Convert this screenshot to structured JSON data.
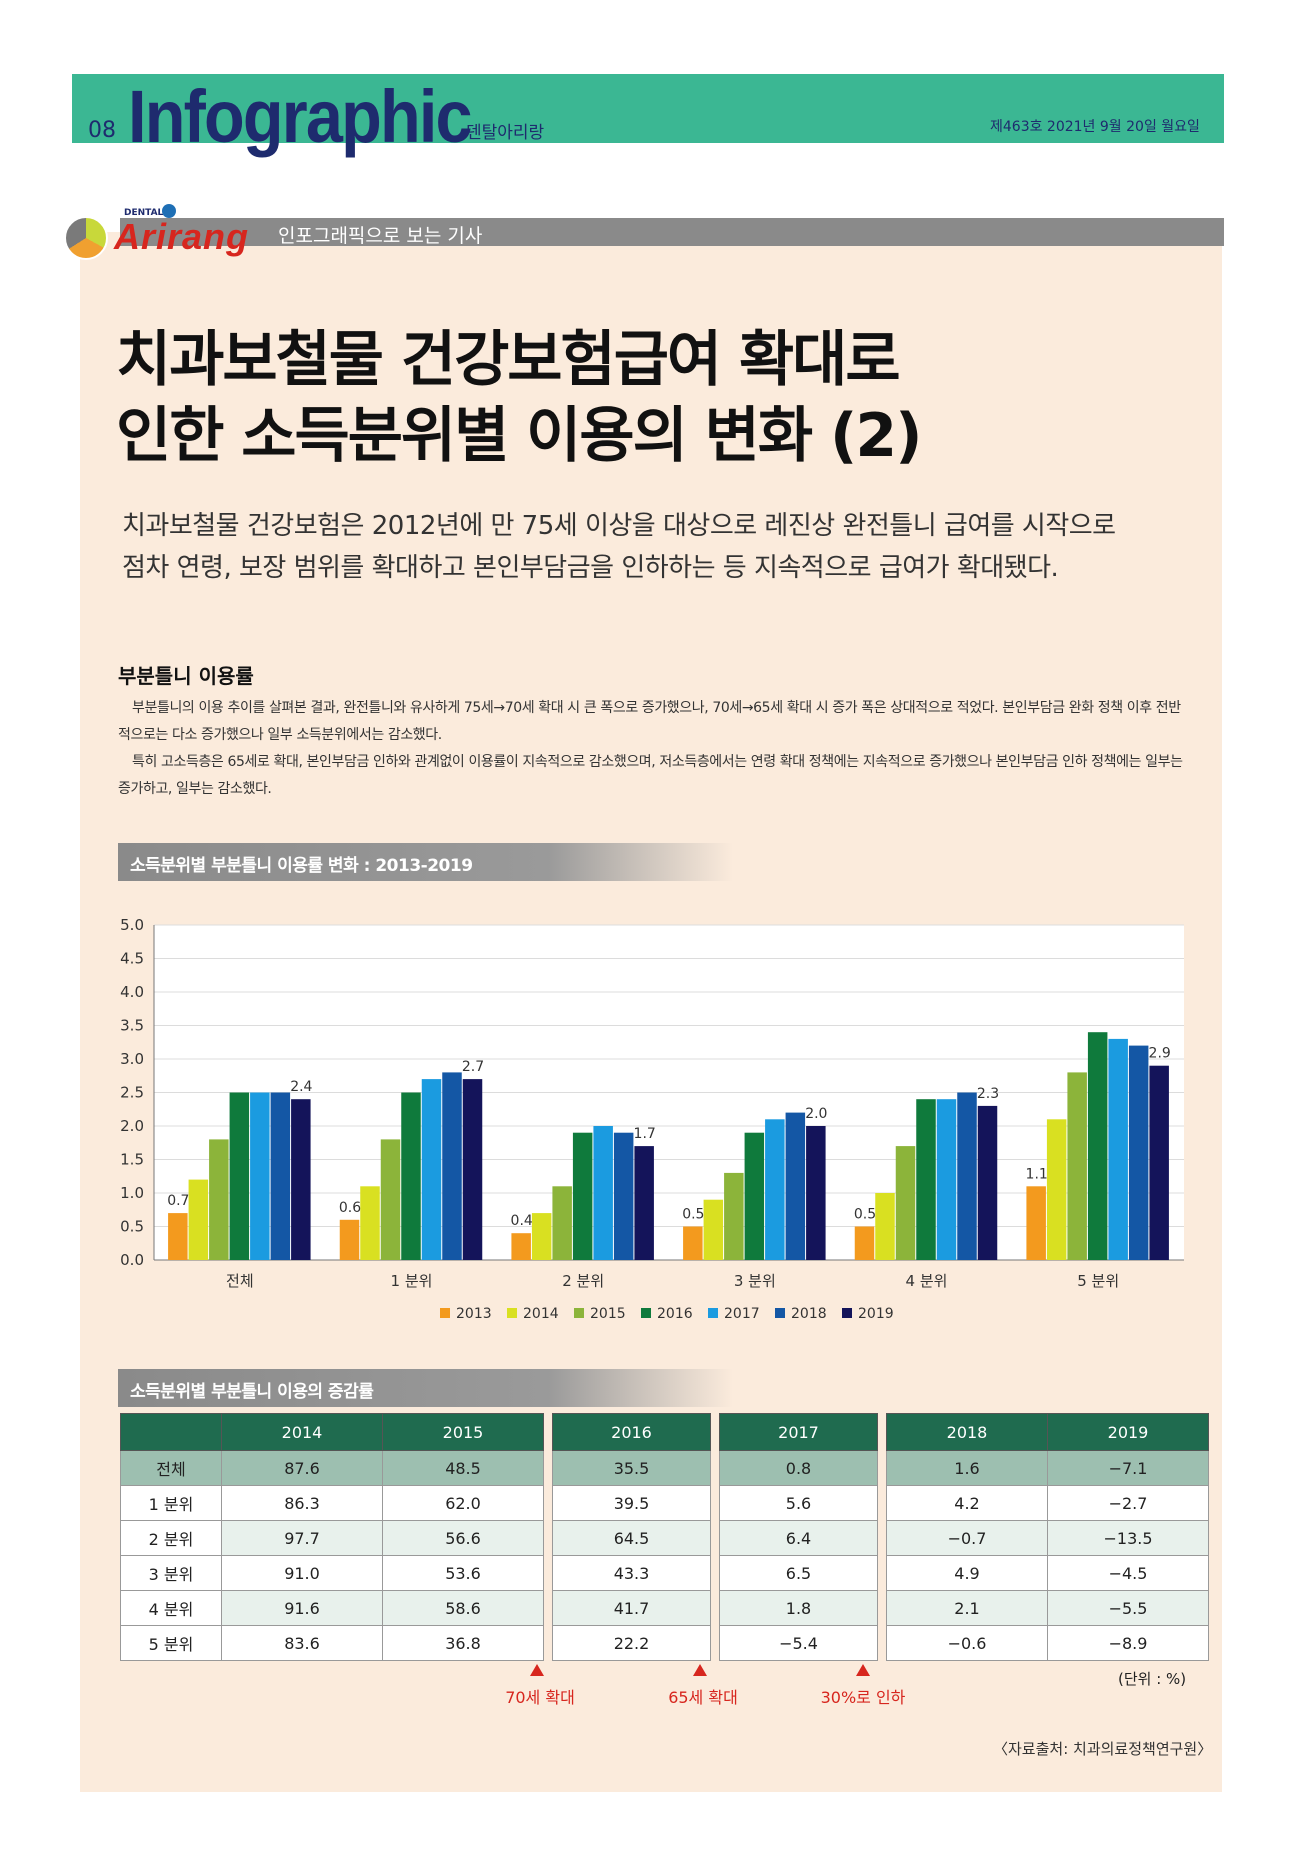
{
  "header": {
    "page_no": "08",
    "title": "Infographic",
    "subtitle": "덴탈아리랑",
    "issue": "제463호  2021년 9월 20일 월요일"
  },
  "banner": {
    "logo_small": "DENTAL",
    "logo_word": "Arirang",
    "text": "인포그래픽으로 보는 기사"
  },
  "article": {
    "title_line1": "치과보철물 건강보험급여 확대로",
    "title_line2": "인한 소득분위별 이용의 변화 (2)",
    "lead_line1": "치과보철물 건강보험은 2012년에 만 75세 이상을 대상으로 레진상 완전틀니 급여를 시작으로",
    "lead_line2": "점차 연령, 보장 범위를 확대하고 본인부담금을 인하하는 등 지속적으로 급여가 확대됐다.",
    "section_heading": "부분틀니 이용률",
    "para1": "부분틀니의 이용 추이를 살펴본 결과, 완전틀니와 유사하게 75세→70세 확대 시 큰 폭으로 증가했으나, 70세→65세 확대 시 증가 폭은 상대적으로 적었다. 본인부담금 완화 정책 이후 전반적으로는 다소 증가했으나 일부 소득분위에서는 감소했다.",
    "para2": "특히 고소득층은 65세로 확대, 본인부담금 인하와 관계없이 이용률이 지속적으로 감소했으며, 저소득층에서는 연령 확대 정책에는 지속적으로 증가했으나 본인부담금 인하 정책에는 일부는 증가하고, 일부는 감소했다."
  },
  "chart_title": "소득분위별 부분틀니 이용률 변화 : 2013-2019",
  "chart_data": {
    "type": "bar",
    "categories": [
      "전체",
      "1 분위",
      "2 분위",
      "3 분위",
      "4 분위",
      "5 분위"
    ],
    "series": [
      {
        "name": "2013",
        "color": "#f39a1e",
        "values": [
          0.7,
          0.6,
          0.4,
          0.5,
          0.5,
          1.1
        ]
      },
      {
        "name": "2014",
        "color": "#d9e021",
        "values": [
          1.2,
          1.1,
          0.7,
          0.9,
          1.0,
          2.1
        ]
      },
      {
        "name": "2015",
        "color": "#8cb43a",
        "values": [
          1.8,
          1.8,
          1.1,
          1.3,
          1.7,
          2.8
        ]
      },
      {
        "name": "2016",
        "color": "#0f7a3c",
        "values": [
          2.5,
          2.5,
          1.9,
          1.9,
          2.4,
          3.4
        ]
      },
      {
        "name": "2017",
        "color": "#1b9be0",
        "values": [
          2.5,
          2.7,
          2.0,
          2.1,
          2.4,
          3.3
        ]
      },
      {
        "name": "2018",
        "color": "#1457a5",
        "values": [
          2.5,
          2.8,
          1.9,
          2.2,
          2.5,
          3.2
        ]
      },
      {
        "name": "2019",
        "color": "#14145a",
        "values": [
          2.4,
          2.7,
          1.7,
          2.0,
          2.3,
          2.9
        ]
      }
    ],
    "data_labels": {
      "2013": [
        "0.7",
        "0.6",
        "0.4",
        "0.5",
        "0.5",
        "1.1"
      ],
      "2019": [
        "2.4",
        "2.7",
        "1.7",
        "2.0",
        "2.3",
        "2.9"
      ]
    },
    "yticks": [
      "0.0",
      "0.5",
      "1.0",
      "1.5",
      "2.0",
      "2.5",
      "3.0",
      "3.5",
      "4.0",
      "4.5",
      "5.0"
    ],
    "ylim": [
      0,
      5
    ],
    "grid": true,
    "legend_position": "bottom"
  },
  "table_title": "소득분위별 부분틀니 이용의 증감률",
  "table": {
    "columns": [
      "2014",
      "2015",
      "2016",
      "2017",
      "2018",
      "2019"
    ],
    "rows": [
      {
        "label": "전체",
        "values": [
          "87.6",
          "48.5",
          "35.5",
          "0.8",
          "1.6",
          "−7.1"
        ]
      },
      {
        "label": "1 분위",
        "values": [
          "86.3",
          "62.0",
          "39.5",
          "5.6",
          "4.2",
          "−2.7"
        ]
      },
      {
        "label": "2 분위",
        "values": [
          "97.7",
          "56.6",
          "64.5",
          "6.4",
          "−0.7",
          "−13.5"
        ]
      },
      {
        "label": "3 분위",
        "values": [
          "91.0",
          "53.6",
          "43.3",
          "6.5",
          "4.9",
          "−4.5"
        ]
      },
      {
        "label": "4 분위",
        "values": [
          "91.6",
          "58.6",
          "41.7",
          "1.8",
          "2.1",
          "−5.5"
        ]
      },
      {
        "label": "5 분위",
        "values": [
          "83.6",
          "36.8",
          "22.2",
          "−5.4",
          "−0.6",
          "−8.9"
        ]
      }
    ],
    "markers": [
      "70세 확대",
      "65세 확대",
      "30%로 인하"
    ],
    "unit": "(단위 : %)"
  },
  "source": "〈자료출처: 치과의료정책연구원〉"
}
